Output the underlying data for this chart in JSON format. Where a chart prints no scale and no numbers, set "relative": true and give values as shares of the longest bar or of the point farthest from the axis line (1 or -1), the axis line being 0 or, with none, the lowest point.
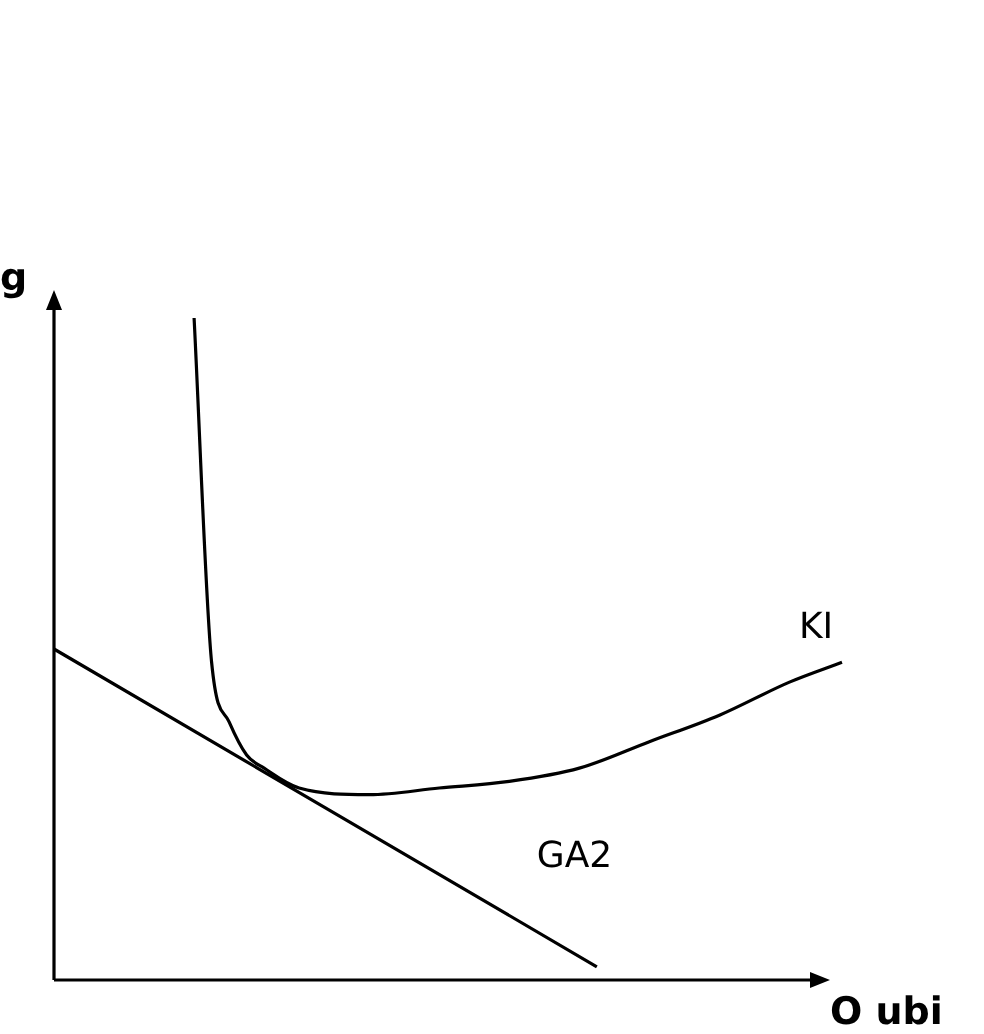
{
  "chart_data": {
    "type": "line",
    "relative": true,
    "xlabel": "O ubi",
    "ylabel": "g",
    "legend": false,
    "marker": "none",
    "line_style": "solid",
    "categories": [
      null,
      null,
      null,
      null,
      null,
      null,
      null,
      null,
      null,
      null,
      null,
      null,
      null,
      null,
      null,
      null,
      null,
      null,
      null,
      null,
      null,
      null,
      null,
      null,
      null,
      null,
      null,
      null,
      null,
      null,
      null,
      null,
      null,
      null,
      null,
      null,
      null,
      null,
      null,
      null,
      null,
      null,
      null,
      null,
      null,
      null
    ],
    "series": [
      {
        "name": "KI",
        "color": "#000000",
        "values": [
          null,
          null,
          null,
          null,
          null,
          null,
          null,
          null,
          1.0,
          0.48,
          0.39,
          0.34,
          0.32,
          null,
          0.29,
          null,
          null,
          null,
          0.28,
          null,
          null,
          null,
          0.29,
          null,
          null,
          null,
          0.3,
          null,
          null,
          null,
          0.32,
          null,
          null,
          null,
          0.36,
          null,
          null,
          null,
          0.4,
          null,
          null,
          null,
          0.45,
          null,
          null,
          0.48
        ]
      },
      {
        "name": "GA2",
        "color": "#000000",
        "values": [
          0.5,
          null,
          null,
          null,
          null,
          null,
          null,
          null,
          null,
          null,
          null,
          null,
          null,
          null,
          null,
          null,
          null,
          null,
          null,
          null,
          null,
          null,
          null,
          null,
          null,
          null,
          null,
          null,
          null,
          null,
          null,
          0.02,
          null,
          null,
          null,
          null,
          null,
          null,
          null,
          null,
          null,
          null,
          null,
          null,
          null,
          null
        ]
      }
    ]
  }
}
